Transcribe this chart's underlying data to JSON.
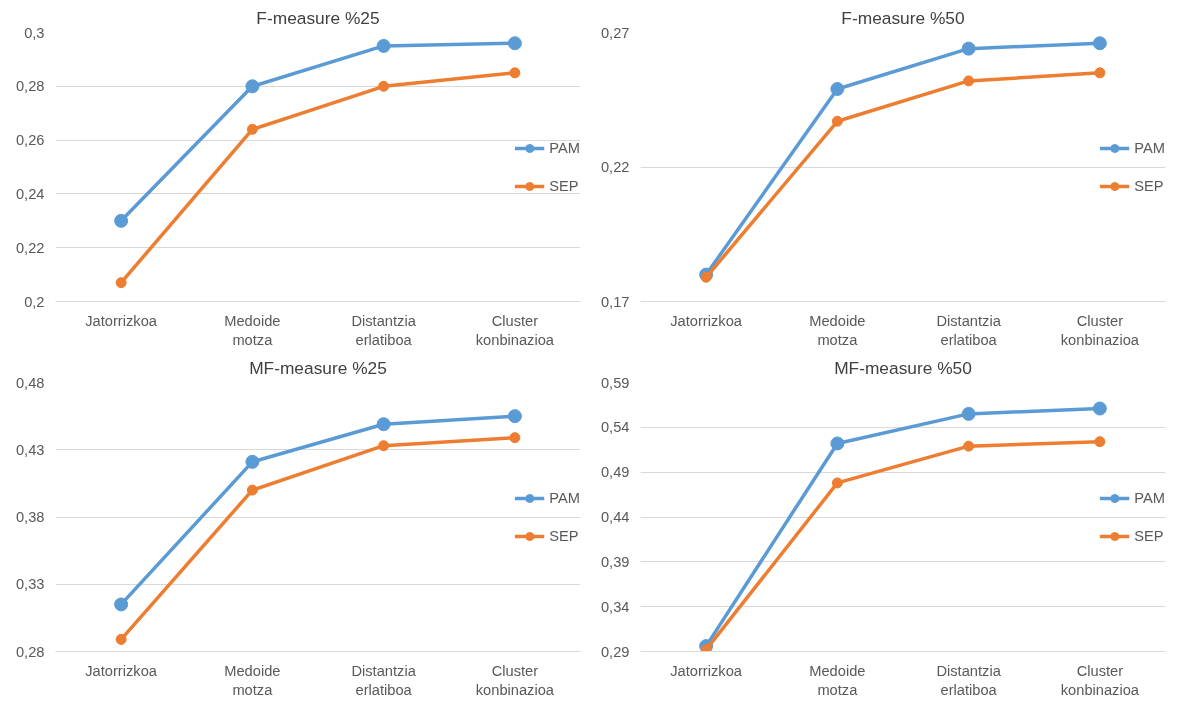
{
  "chart_data": [
    {
      "type": "line",
      "title": "F-measure %25",
      "categories": [
        "Jatorrizkoa",
        "Medoide motza",
        "Distantzia erlatiboa",
        "Cluster konbinazioa"
      ],
      "series": [
        {
          "name": "PAM",
          "color": "#5b9bd5",
          "values": [
            0.23,
            0.28,
            0.295,
            0.296
          ]
        },
        {
          "name": "SEP",
          "color": "#ed7d31",
          "values": [
            0.207,
            0.264,
            0.28,
            0.285
          ]
        }
      ],
      "ylim": [
        0.2,
        0.3
      ],
      "yticks": [
        {
          "value": 0.2,
          "label": "0,2"
        },
        {
          "value": 0.22,
          "label": "0,22"
        },
        {
          "value": 0.24,
          "label": "0,24"
        },
        {
          "value": 0.26,
          "label": "0,26"
        },
        {
          "value": 0.28,
          "label": "0,28"
        },
        {
          "value": 0.3,
          "label": "0,3"
        }
      ],
      "grid": "y",
      "legend": "right",
      "marker": "circle",
      "line_style": "solid"
    },
    {
      "type": "line",
      "title": "F-measure %50",
      "categories": [
        "Jatorrizkoa",
        "Medoide motza",
        "Distantzia erlatiboa",
        "Cluster konbinazioa"
      ],
      "series": [
        {
          "name": "PAM",
          "color": "#5b9bd5",
          "values": [
            0.18,
            0.249,
            0.264,
            0.266
          ]
        },
        {
          "name": "SEP",
          "color": "#ed7d31",
          "values": [
            0.179,
            0.237,
            0.252,
            0.255
          ]
        }
      ],
      "ylim": [
        0.17,
        0.27
      ],
      "yticks": [
        {
          "value": 0.17,
          "label": "0,17"
        },
        {
          "value": 0.22,
          "label": "0,22"
        },
        {
          "value": 0.27,
          "label": "0,27"
        }
      ],
      "grid": "y",
      "legend": "right",
      "marker": "circle",
      "line_style": "solid"
    },
    {
      "type": "line",
      "title": "MF-measure %25",
      "categories": [
        "Jatorrizkoa",
        "Medoide motza",
        "Distantzia erlatiboa",
        "Cluster konbinazioa"
      ],
      "series": [
        {
          "name": "PAM",
          "color": "#5b9bd5",
          "values": [
            0.315,
            0.421,
            0.449,
            0.455
          ]
        },
        {
          "name": "SEP",
          "color": "#ed7d31",
          "values": [
            0.289,
            0.4,
            0.433,
            0.439
          ]
        }
      ],
      "ylim": [
        0.28,
        0.48
      ],
      "yticks": [
        {
          "value": 0.28,
          "label": "0,28"
        },
        {
          "value": 0.33,
          "label": "0,33"
        },
        {
          "value": 0.38,
          "label": "0,38"
        },
        {
          "value": 0.43,
          "label": "0,43"
        },
        {
          "value": 0.48,
          "label": "0,48"
        }
      ],
      "grid": "y",
      "legend": "right",
      "marker": "circle",
      "line_style": "solid"
    },
    {
      "type": "line",
      "title": "MF-measure %50",
      "categories": [
        "Jatorrizkoa",
        "Medoide motza",
        "Distantzia erlatiboa",
        "Cluster konbinazioa"
      ],
      "series": [
        {
          "name": "PAM",
          "color": "#5b9bd5",
          "values": [
            0.296,
            0.522,
            0.555,
            0.561
          ]
        },
        {
          "name": "SEP",
          "color": "#ed7d31",
          "values": [
            0.292,
            0.478,
            0.519,
            0.524
          ]
        }
      ],
      "ylim": [
        0.29,
        0.59
      ],
      "yticks": [
        {
          "value": 0.29,
          "label": "0,29"
        },
        {
          "value": 0.34,
          "label": "0,34"
        },
        {
          "value": 0.39,
          "label": "0,39"
        },
        {
          "value": 0.44,
          "label": "0,44"
        },
        {
          "value": 0.49,
          "label": "0,49"
        },
        {
          "value": 0.54,
          "label": "0,54"
        },
        {
          "value": 0.59,
          "label": "0,59"
        }
      ],
      "grid": "y",
      "legend": "right",
      "marker": "circle",
      "line_style": "solid"
    }
  ]
}
